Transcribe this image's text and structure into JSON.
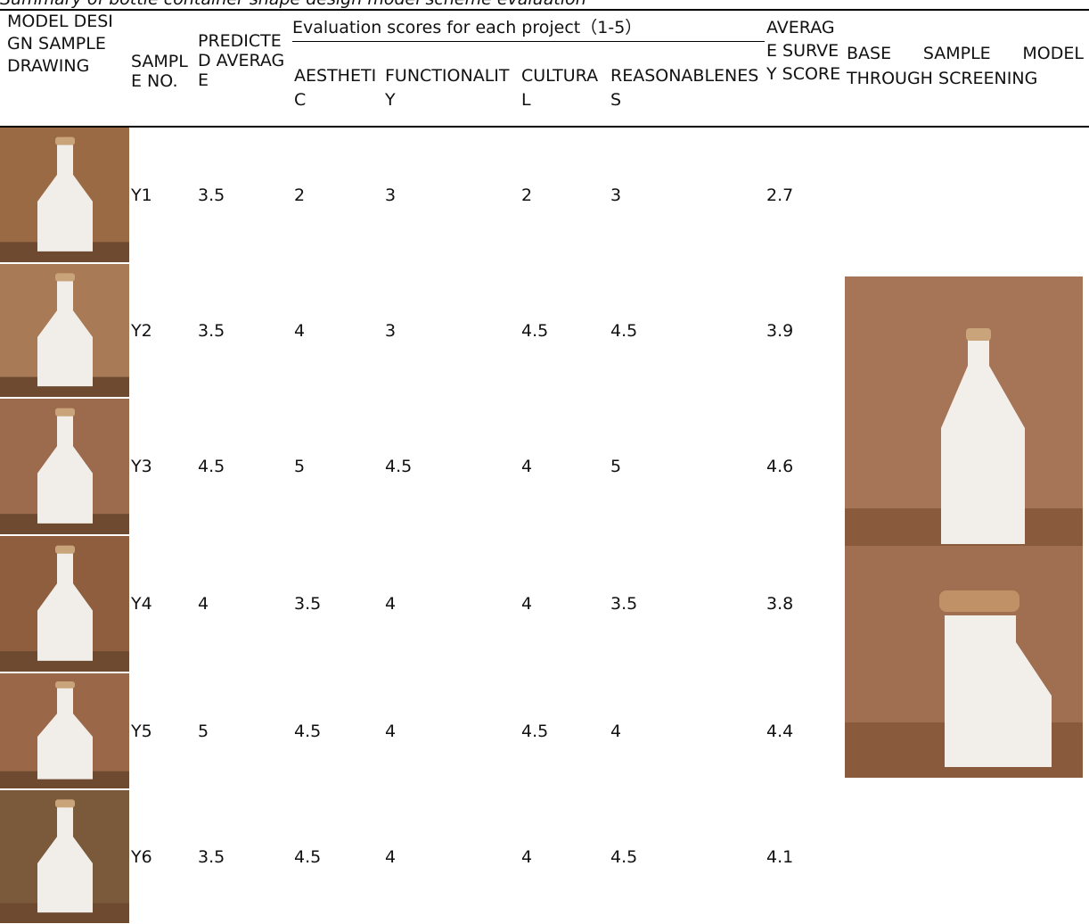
{
  "caption": "Summary of bottle container shape design model scheme evaluation",
  "table": {
    "headers": {
      "drawing": "MODEL DESIGN SAMPLE DRAWING",
      "sample_no": "SAMPLE NO.",
      "predicted": "PREDICTED AVERAGE",
      "group": "Evaluation scores for each project（1-5）",
      "aesthetic": "AESTHETIC",
      "functionality": "FUNCTIONALITY",
      "cultural": "CULTURAL",
      "reasonableness": "REASONABLENESS",
      "average": "AVERAGE SURVEY SCORE",
      "base": "BASE SAMPLE MODEL THROUGH SCREENING"
    },
    "rows": [
      [
        "Y1",
        3.5,
        2,
        3,
        2,
        3,
        2.7
      ],
      [
        "Y2",
        3.5,
        4,
        3,
        4.5,
        4.5,
        3.9
      ],
      [
        "Y3",
        4.5,
        5,
        4.5,
        4,
        5,
        4.6
      ],
      [
        "Y4",
        4,
        3.5,
        4,
        4,
        3.5,
        3.8
      ],
      [
        "Y5",
        5,
        4.5,
        4,
        4.5,
        4,
        4.4
      ],
      [
        "Y6",
        3.5,
        4.5,
        4,
        4,
        4.5,
        4.1
      ]
    ]
  }
}
